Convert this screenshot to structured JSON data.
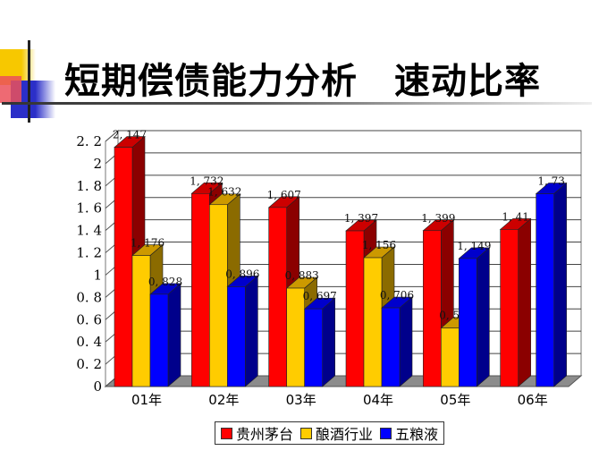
{
  "page": {
    "title": "短期偿债能力分析　速动比率"
  },
  "colors": {
    "贵州茅台": "#ff0000",
    "酿酒行业": "#ffcc00",
    "五粮液": "#0000ff"
  },
  "chart_data": {
    "type": "bar",
    "title": "短期偿债能力分析 速动比率",
    "xlabel": "",
    "ylabel": "",
    "categories": [
      "01年",
      "02年",
      "03年",
      "04年",
      "05年",
      "06年"
    ],
    "series": [
      {
        "name": "贵州茅台",
        "color": "#ff0000",
        "values": [
          2.147,
          1.732,
          1.607,
          1.397,
          1.399,
          1.41
        ],
        "labels": [
          "2.147",
          "1.732",
          "1.607",
          "1.397",
          "1.399",
          "1.41"
        ]
      },
      {
        "name": "酿酒行业",
        "color": "#ffcc00",
        "values": [
          1.176,
          1.632,
          0.883,
          1.156,
          0.525,
          null
        ],
        "labels": [
          "1.176",
          "1.632",
          "0.883",
          "1.156",
          "0.525",
          ""
        ]
      },
      {
        "name": "五粮液",
        "color": "#0000ff",
        "values": [
          0.828,
          0.896,
          0.697,
          0.706,
          1.149,
          1.73
        ],
        "labels": [
          "0.828",
          "0.896",
          "0.697",
          "0.706",
          "1.149",
          "1.73"
        ]
      }
    ],
    "ylim": [
      0,
      2.2
    ],
    "yticks": [
      "0",
      "0.2",
      "0.4",
      "0.6",
      "0.8",
      "1",
      "1.2",
      "1.4",
      "1.6",
      "1.8",
      "2",
      "2.2"
    ],
    "grid": true,
    "legend_position": "bottom",
    "style": "3d-clustered-column"
  },
  "legend": {
    "items": [
      {
        "label": "贵州茅台",
        "color": "#ff0000"
      },
      {
        "label": "酿酒行业",
        "color": "#ffcc00"
      },
      {
        "label": "五粮液",
        "color": "#0000ff"
      }
    ]
  }
}
